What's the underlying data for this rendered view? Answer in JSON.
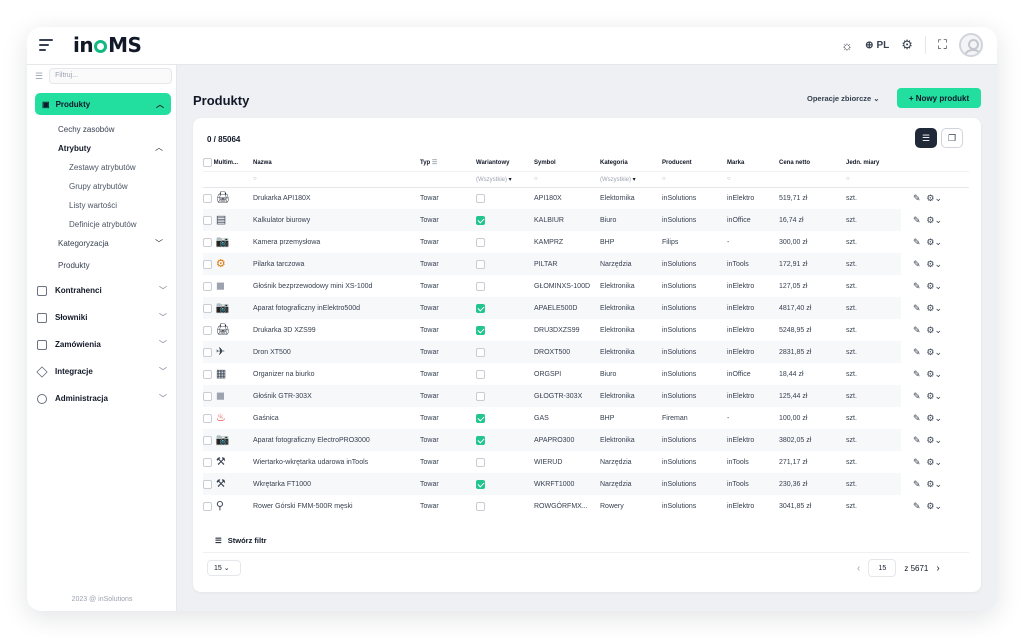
{
  "app": {
    "logo": "inOMS"
  },
  "topbar": {
    "lang": "PL"
  },
  "sidebar": {
    "filter_placeholder": "Filtruj...",
    "active_item": "Produkty",
    "subitems": [
      "Cechy zasobów",
      "Atrybuty"
    ],
    "attribute_items": [
      "Zestawy atrybutów",
      "Grupy atrybutów",
      "Listy wartości",
      "Definicje atrybutów"
    ],
    "categorization": "Kategoryzacja",
    "products": "Produkty",
    "main_items": [
      "Kontrahenci",
      "Słowniki",
      "Zamówienia",
      "Integracje",
      "Administracja"
    ],
    "copyright": "2023 @ inSolutions"
  },
  "page": {
    "title": "Produkty",
    "bulk_ops": "Operacje zbiorcze",
    "new_product": "+ Nowy produkt",
    "count": "0 / 85064"
  },
  "table": {
    "headers": [
      "Multim...",
      "Nazwa",
      "Typ",
      "Wariantowy",
      "Symbol",
      "Kategoria",
      "Producent",
      "Marka",
      "Cena netto",
      "Jedn. miary"
    ],
    "filter_all": "(Wszystkie)",
    "rows": [
      {
        "icon": "printer",
        "name": "Drukarka API180X",
        "type": "Towar",
        "variant": false,
        "symbol": "API180X",
        "category": "Elektornika",
        "producer": "inSolutions",
        "brand": "inElektro",
        "price": "519,71 zł",
        "unit": "szt."
      },
      {
        "icon": "calculator",
        "name": "Kalkulator biurowy",
        "type": "Towar",
        "variant": true,
        "symbol": "KALBIUR",
        "category": "Biuro",
        "producer": "inSolutions",
        "brand": "inOffice",
        "price": "16,74 zł",
        "unit": "szt."
      },
      {
        "icon": "camera",
        "name": "Kamera przemysłowa",
        "type": "Towar",
        "variant": false,
        "symbol": "KAMPRZ",
        "category": "BHP",
        "producer": "Filips",
        "brand": "-",
        "price": "300,00 zł",
        "unit": "szt."
      },
      {
        "icon": "saw",
        "name": "Pilarka tarczowa",
        "type": "Towar",
        "variant": false,
        "symbol": "PILTAR",
        "category": "Narzędzia",
        "producer": "inSolutions",
        "brand": "inTools",
        "price": "172,91 zł",
        "unit": "szt."
      },
      {
        "icon": "speaker",
        "name": "Głośnik bezprzewodowy mini XS-100d",
        "type": "Towar",
        "variant": false,
        "symbol": "GŁOMINXS-100D",
        "category": "Elektronika",
        "producer": "inSolutions",
        "brand": "inElektro",
        "price": "127,05 zł",
        "unit": "szt."
      },
      {
        "icon": "camera",
        "name": "Aparat fotograficzny inElektro500d",
        "type": "Towar",
        "variant": true,
        "symbol": "APAELE500D",
        "category": "Elektronika",
        "producer": "inSolutions",
        "brand": "inElektro",
        "price": "4817,40 zł",
        "unit": "szt."
      },
      {
        "icon": "printer",
        "name": "Drukarka 3D XZS99",
        "type": "Towar",
        "variant": true,
        "symbol": "DRU3DXZS99",
        "category": "Elektronika",
        "producer": "inSolutions",
        "brand": "inElektro",
        "price": "5248,95 zł",
        "unit": "szt."
      },
      {
        "icon": "drone",
        "name": "Dron XT500",
        "type": "Towar",
        "variant": false,
        "symbol": "DROXT500",
        "category": "Elektronika",
        "producer": "inSolutions",
        "brand": "inElektro",
        "price": "2831,85 zł",
        "unit": "szt."
      },
      {
        "icon": "organizer",
        "name": "Organizer na biurko",
        "type": "Towar",
        "variant": false,
        "symbol": "ORGSPI",
        "category": "Biuro",
        "producer": "inSolutions",
        "brand": "inOffice",
        "price": "18,44 zł",
        "unit": "szt."
      },
      {
        "icon": "speaker",
        "name": "Głośnik GTR-303X",
        "type": "Towar",
        "variant": false,
        "symbol": "GŁOGTR-303X",
        "category": "Elektronika",
        "producer": "inSolutions",
        "brand": "inElektro",
        "price": "125,44 zł",
        "unit": "szt."
      },
      {
        "icon": "extinguisher",
        "name": "Gaśnica",
        "type": "Towar",
        "variant": true,
        "symbol": "GAS",
        "category": "BHP",
        "producer": "Fireman",
        "brand": "-",
        "price": "100,00 zł",
        "unit": "szt."
      },
      {
        "icon": "camera",
        "name": "Aparat fotograficzny ElectroPRO3000",
        "type": "Towar",
        "variant": true,
        "symbol": "APAPRO300",
        "category": "Elektronika",
        "producer": "inSolutions",
        "brand": "inElektro",
        "price": "3802,05 zł",
        "unit": "szt."
      },
      {
        "icon": "drill",
        "name": "Wiertarko-wkrętarka udarowa inTools",
        "type": "Towar",
        "variant": false,
        "symbol": "WIERUD",
        "category": "Narzędzia",
        "producer": "inSolutions",
        "brand": "inTools",
        "price": "271,17 zł",
        "unit": "szt."
      },
      {
        "icon": "drill",
        "name": "Wkrętarka FT1000",
        "type": "Towar",
        "variant": true,
        "symbol": "WKRFT1000",
        "category": "Narzędzia",
        "producer": "inSolutions",
        "brand": "inTools",
        "price": "230,36 zł",
        "unit": "szt."
      },
      {
        "icon": "bike",
        "name": "Rower Górski FMM-500R męski",
        "type": "Towar",
        "variant": false,
        "symbol": "ROWGÓRFMX...",
        "category": "Rowery",
        "producer": "inSolutions",
        "brand": "inElektro",
        "price": "3041,85 zł",
        "unit": "szt."
      }
    ]
  },
  "footer": {
    "create_filter": "Stwórz filtr",
    "per_page": "15",
    "page_current": "15",
    "page_total": "z 5671"
  }
}
